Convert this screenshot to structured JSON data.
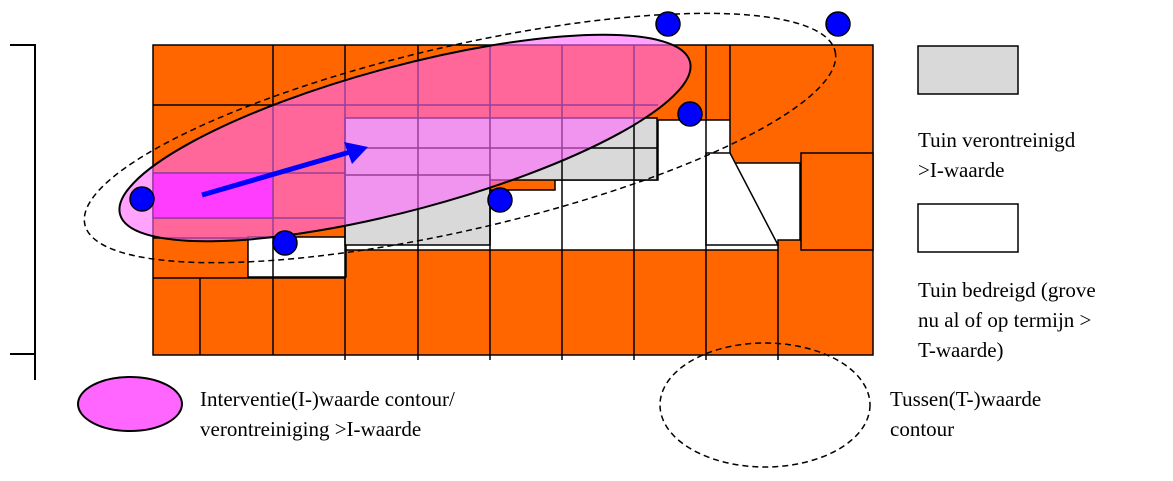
{
  "colors": {
    "orange": "#ff6600",
    "polluted_garden": "#d9d9d9",
    "threatened_garden": "#ffffff",
    "intervention_fill": "#ff66ff",
    "arrow": "#0000ff",
    "sample_points": "#0000ff"
  },
  "legend": {
    "polluted_line1": "Tuin verontreinigd",
    "polluted_line2": ">I-waarde",
    "threatened_line1": "Tuin bedreigd (grove",
    "threatened_line2": "nu al of  op termijn >",
    "threatened_line3": "T-waarde)",
    "intervention_line1": "Interventie(I-)waarde contour/",
    "intervention_line2": "verontreiniging >I-waarde",
    "t_contour_line1": "Tussen(T-)waarde",
    "t_contour_line2": "contour"
  }
}
